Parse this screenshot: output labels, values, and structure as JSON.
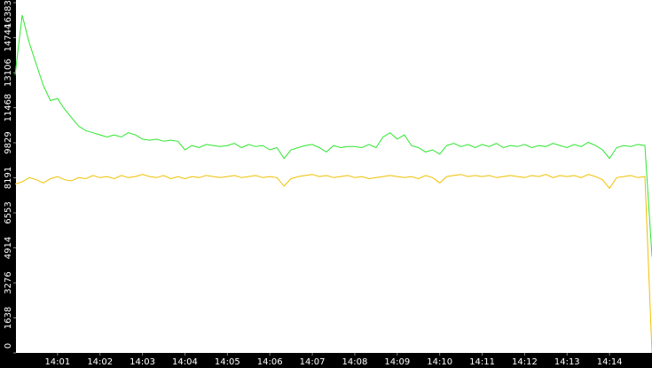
{
  "chart_data": {
    "type": "line",
    "categories": [
      null,
      null,
      null,
      null,
      null,
      null,
      "14:01",
      null,
      null,
      null,
      null,
      null,
      "14:02",
      null,
      null,
      null,
      null,
      null,
      "14:03",
      null,
      null,
      null,
      null,
      null,
      "14:04",
      null,
      null,
      null,
      null,
      null,
      "14:05",
      null,
      null,
      null,
      null,
      null,
      "14:06",
      null,
      null,
      null,
      null,
      null,
      "14:07",
      null,
      null,
      null,
      null,
      null,
      "14:08",
      null,
      null,
      null,
      null,
      null,
      "14:09",
      null,
      null,
      null,
      null,
      null,
      "14:10",
      null,
      null,
      null,
      null,
      null,
      "14:11",
      null,
      null,
      null,
      null,
      null,
      "14:12",
      null,
      null,
      null,
      null,
      null,
      "14:13",
      null,
      null,
      null,
      null,
      null,
      "14:14",
      null,
      null,
      null,
      null,
      null,
      null
    ],
    "series": [
      {
        "color": "#2ee62e",
        "values": [
          13000,
          15800,
          14500,
          13500,
          12500,
          11800,
          11900,
          11400,
          11000,
          10600,
          10400,
          10300,
          10200,
          10100,
          10200,
          10100,
          10300,
          10200,
          10000,
          9950,
          10000,
          9900,
          9950,
          9900,
          9500,
          9700,
          9600,
          9750,
          9700,
          9650,
          9700,
          9800,
          9600,
          9750,
          9650,
          9700,
          9500,
          9600,
          9100,
          9500,
          9600,
          9700,
          9750,
          9600,
          9400,
          9700,
          9600,
          9650,
          9650,
          9600,
          9750,
          9600,
          10100,
          10300,
          10000,
          10200,
          9700,
          9600,
          9400,
          9500,
          9300,
          9700,
          9800,
          9650,
          9750,
          9600,
          9750,
          9650,
          9800,
          9600,
          9700,
          9650,
          9750,
          9600,
          9700,
          9650,
          9800,
          9700,
          9600,
          9750,
          9650,
          9850,
          9700,
          9500,
          9100,
          9600,
          9700,
          9650,
          9750,
          9700,
          4500
        ]
      },
      {
        "color": "#f0c000",
        "values": [
          7900,
          8000,
          8200,
          8100,
          7950,
          8150,
          8250,
          8100,
          8050,
          8200,
          8150,
          8300,
          8200,
          8250,
          8150,
          8300,
          8200,
          8250,
          8350,
          8250,
          8200,
          8300,
          8150,
          8250,
          8150,
          8250,
          8200,
          8300,
          8250,
          8200,
          8250,
          8300,
          8200,
          8250,
          8300,
          8200,
          8250,
          8200,
          7800,
          8150,
          8250,
          8300,
          8350,
          8250,
          8300,
          8200,
          8250,
          8300,
          8200,
          8250,
          8150,
          8200,
          8250,
          8300,
          8250,
          8200,
          8250,
          8150,
          8300,
          8200,
          7950,
          8250,
          8300,
          8350,
          8250,
          8300,
          8250,
          8300,
          8200,
          8250,
          8300,
          8250,
          8200,
          8300,
          8250,
          8350,
          8200,
          8300,
          8250,
          8300,
          8200,
          8350,
          8250,
          8100,
          7700,
          8200,
          8250,
          8300,
          8200,
          8250,
          0
        ]
      }
    ],
    "ylim": [
      0,
      16383
    ],
    "yticks": [
      0,
      1638,
      3276,
      4914,
      6553,
      8191,
      9829,
      11468,
      13106,
      14744,
      16383
    ]
  }
}
